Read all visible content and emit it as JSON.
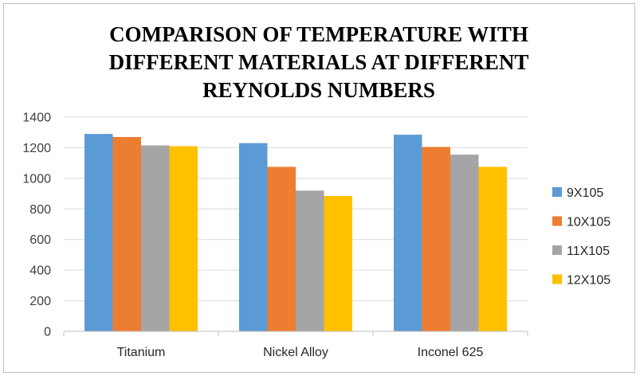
{
  "chart_data": {
    "type": "bar",
    "title": "COMPARISON OF TEMPERATURE WITH DIFFERENT MATERIALS AT DIFFERENT REYNOLDS NUMBERS",
    "categories": [
      "Titanium",
      "Nickel Alloy",
      "Inconel 625"
    ],
    "series": [
      {
        "name": "9X105",
        "color": "#5b9bd5",
        "values": [
          1290,
          1230,
          1285
        ]
      },
      {
        "name": "10X105",
        "color": "#ed7d31",
        "values": [
          1270,
          1075,
          1205
        ]
      },
      {
        "name": "11X105",
        "color": "#a5a5a5",
        "values": [
          1215,
          920,
          1155
        ]
      },
      {
        "name": "12X105",
        "color": "#ffc000",
        "values": [
          1210,
          885,
          1075
        ]
      }
    ],
    "yticks": [
      "0",
      "200",
      "400",
      "600",
      "800",
      "1000",
      "1200",
      "1400"
    ],
    "ylim": [
      0,
      1400
    ],
    "grid": true,
    "legend": "right"
  }
}
